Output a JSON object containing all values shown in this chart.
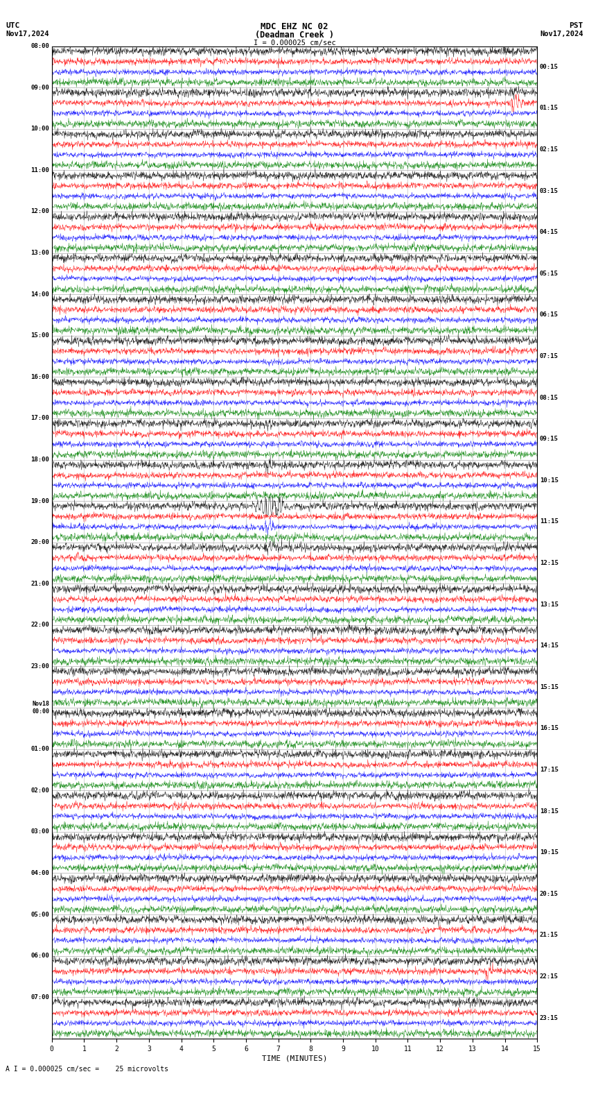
{
  "title_line1": "MDC EHZ NC 02",
  "title_line2": "(Deadman Creek )",
  "scale_text": "I = 0.000025 cm/sec",
  "utc_label": "UTC",
  "utc_date": "Nov17,2024",
  "pst_label": "PST",
  "pst_date": "Nov17,2024",
  "left_times_utc": [
    "08:00",
    "09:00",
    "10:00",
    "11:00",
    "12:00",
    "13:00",
    "14:00",
    "15:00",
    "16:00",
    "17:00",
    "18:00",
    "19:00",
    "20:00",
    "21:00",
    "22:00",
    "23:00",
    "Nov18\n00:00",
    "01:00",
    "02:00",
    "03:00",
    "04:00",
    "05:00",
    "06:00",
    "07:00"
  ],
  "right_times_pst": [
    "00:15",
    "01:15",
    "02:15",
    "03:15",
    "04:15",
    "05:15",
    "06:15",
    "07:15",
    "08:15",
    "09:15",
    "10:15",
    "11:15",
    "12:15",
    "13:15",
    "14:15",
    "15:15",
    "16:15",
    "17:15",
    "18:15",
    "19:15",
    "20:15",
    "21:15",
    "22:15",
    "23:15"
  ],
  "num_rows": 24,
  "trace_colors": [
    "black",
    "red",
    "blue",
    "green"
  ],
  "xlabel": "TIME (MINUTES)",
  "xticks": [
    0,
    1,
    2,
    3,
    4,
    5,
    6,
    7,
    8,
    9,
    10,
    11,
    12,
    13,
    14,
    15
  ],
  "footer_text": "A I = 0.000025 cm/sec =    25 microvolts",
  "bg_color": "white",
  "title_fontsize": 9,
  "tick_fontsize": 7,
  "label_fontsize": 7,
  "eq_row": 11,
  "eq_minute": 6.7,
  "eq2_row": 1,
  "eq2_minute": 14.3,
  "eq3_row": 22,
  "eq3_minute": 13.5
}
